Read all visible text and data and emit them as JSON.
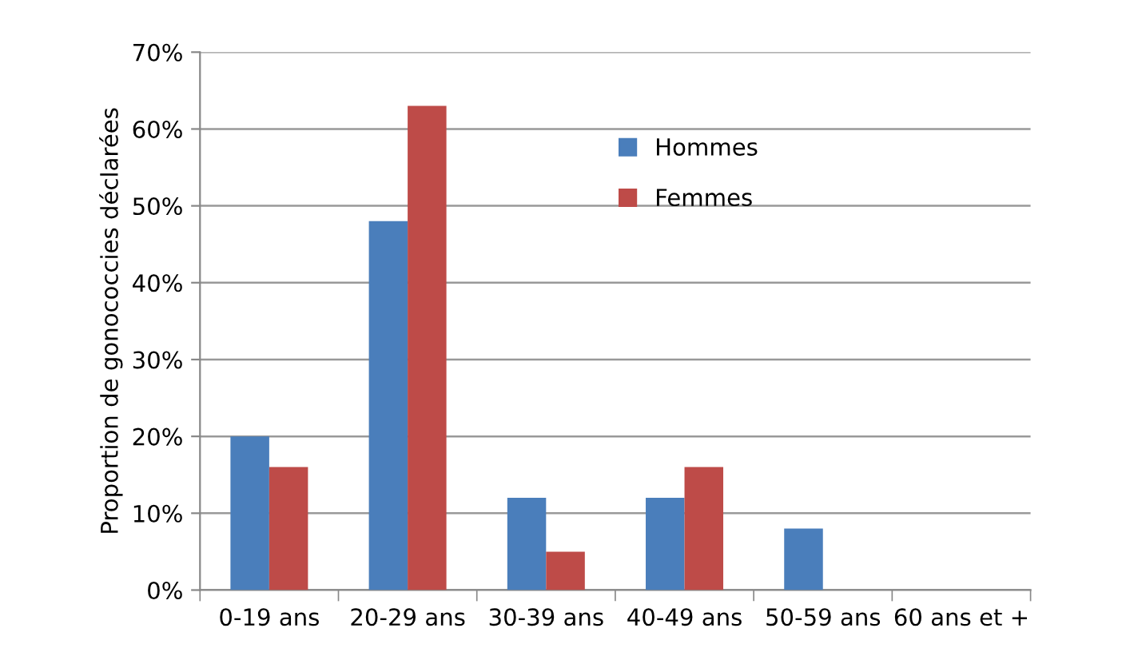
{
  "chart_data": {
    "type": "bar",
    "ylabel": "Proportion de gonococcies déclarées",
    "categories": [
      "0-19 ans",
      "20-29 ans",
      "30-39 ans",
      "40-49 ans",
      "50-59 ans",
      "60 ans et +"
    ],
    "series": [
      {
        "name": "Hommes",
        "color": "#4a7ebb",
        "values": [
          20,
          48,
          12,
          12,
          8,
          0
        ]
      },
      {
        "name": "Femmes",
        "color": "#be4b48",
        "values": [
          16,
          63,
          5,
          16,
          0,
          0
        ]
      }
    ],
    "ylim": [
      0,
      70
    ],
    "yticks": [
      {
        "value": 0,
        "label": "0%"
      },
      {
        "value": 10,
        "label": "10%"
      },
      {
        "value": 20,
        "label": "20%"
      },
      {
        "value": 30,
        "label": "30%"
      },
      {
        "value": 40,
        "label": "40%"
      },
      {
        "value": 50,
        "label": "50%"
      },
      {
        "value": 60,
        "label": "60%"
      },
      {
        "value": 70,
        "label": "70%"
      }
    ],
    "grid": "y",
    "legend": "top"
  }
}
